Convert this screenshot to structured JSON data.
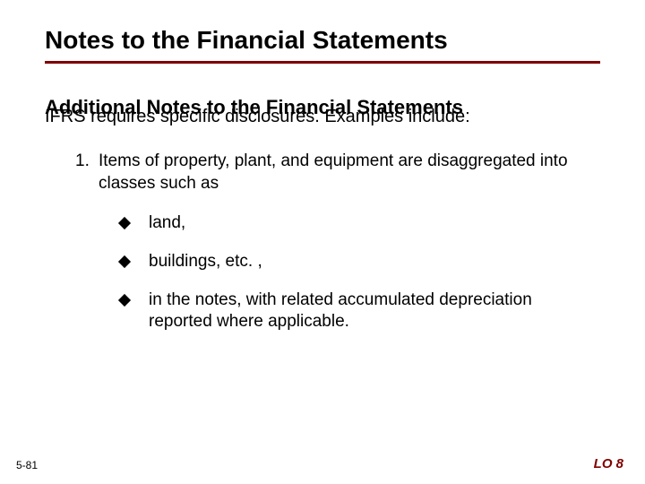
{
  "title": "Notes to the Financial Statements",
  "section_heading": "Additional Notes to the Financial Statements",
  "body_text": "IFRS requires specific disclosures.  Examples include:",
  "numbered": {
    "num": "1.",
    "text": "Items of property, plant, and equipment are disaggregated into classes such as"
  },
  "bullets": [
    "land,",
    "buildings, etc. ,",
    "in the notes, with related accumulated depreciation reported where applicable."
  ],
  "footer_left": "5-81",
  "footer_right": "LO 8",
  "colors": {
    "accent": "#800000",
    "text": "#000000",
    "background": "#ffffff"
  },
  "typography": {
    "title_fontsize": 28,
    "heading_fontsize": 22,
    "body_fontsize": 20,
    "list_fontsize": 19,
    "footer_left_fontsize": 12,
    "footer_right_fontsize": 15
  }
}
